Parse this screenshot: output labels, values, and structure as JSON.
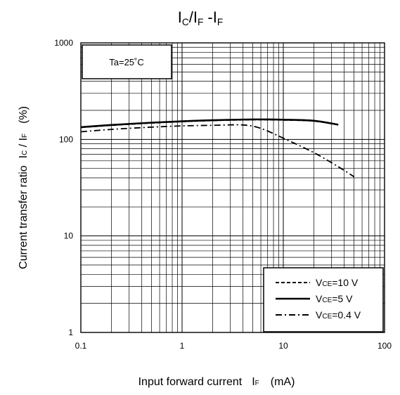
{
  "chart_data": {
    "type": "line",
    "title": {
      "main1": "I",
      "sub1": "C",
      "mid": "/I",
      "sub2": "F",
      "dash": " -I",
      "sub3": "F"
    },
    "xlabel": {
      "main": "Input forward current",
      "sym": "I",
      "sub": "F",
      "unit": "(mA)"
    },
    "ylabel": {
      "main": "Current transfer ratio",
      "sym1": "I",
      "sub1": "C",
      "mid": " / I",
      "sub2": "F",
      "unit": "(%)"
    },
    "x_scale": "log",
    "y_scale": "log",
    "xlim": [
      0.1,
      100
    ],
    "ylim": [
      1,
      1000
    ],
    "x_ticks": [
      0.1,
      1,
      10,
      100
    ],
    "x_tick_labels": [
      "0.1",
      "1",
      "10",
      "100"
    ],
    "y_ticks": [
      1,
      10,
      100,
      1000
    ],
    "y_tick_labels": [
      "1",
      "10",
      "100",
      "1000"
    ],
    "grid": true,
    "annotation": "Ta=25˚C",
    "legend_position": "bottom-right",
    "series": [
      {
        "name": "VCE=10 V",
        "label": {
          "pre": "V",
          "sub": "CE",
          "post": "=10  V"
        },
        "style": "dashed",
        "x": [
          0.1,
          0.2,
          0.5,
          1,
          2,
          5,
          10,
          20,
          35
        ],
        "y": [
          133,
          140,
          148,
          153,
          157,
          160,
          159,
          155,
          142
        ]
      },
      {
        "name": "VCE=5 V",
        "label": {
          "pre": "V",
          "sub": "CE",
          "post": "=5  V"
        },
        "style": "solid",
        "x": [
          0.1,
          0.2,
          0.5,
          1,
          2,
          5,
          10,
          20,
          35
        ],
        "y": [
          134,
          141,
          149,
          154,
          158,
          161,
          160,
          156,
          142
        ]
      },
      {
        "name": "VCE=0.4 V",
        "label": {
          "pre": "V",
          "sub": "CE",
          "post": "=0.4 V"
        },
        "style": "dashdot",
        "x": [
          0.1,
          0.2,
          0.5,
          1,
          2,
          4,
          6,
          10,
          20,
          35,
          50
        ],
        "y": [
          120,
          127,
          134,
          138,
          140,
          141,
          130,
          103,
          73,
          52,
          41
        ]
      }
    ]
  }
}
